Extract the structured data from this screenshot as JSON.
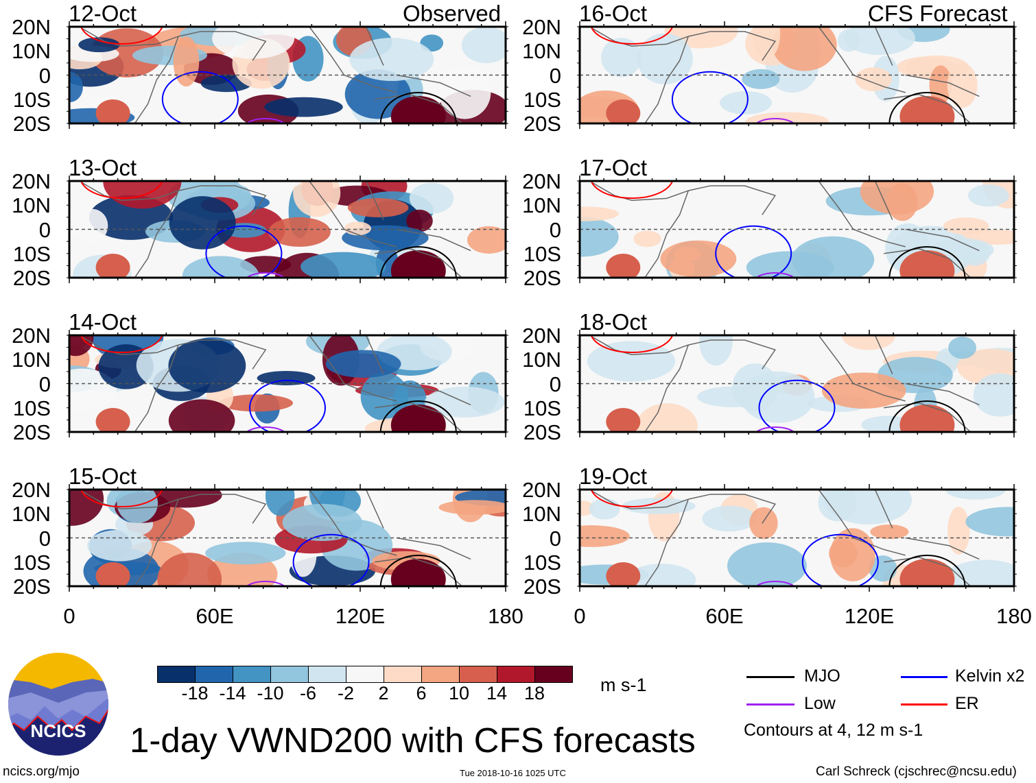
{
  "title": "1-day VWND200 with CFS forecasts",
  "left_header": "Observed",
  "right_header": "CFS Forecast",
  "panels_left": [
    "12-Oct",
    "13-Oct",
    "14-Oct",
    "15-Oct"
  ],
  "panels_right": [
    "16-Oct",
    "17-Oct",
    "18-Oct",
    "19-Oct"
  ],
  "lat_labels": [
    "20N",
    "10N",
    "0",
    "10S",
    "20S"
  ],
  "lon_labels": [
    "0",
    "60E",
    "120E",
    "180"
  ],
  "colorbar": {
    "labels": [
      "-18",
      "-14",
      "-10",
      "-6",
      "-2",
      "2",
      "6",
      "10",
      "14",
      "18"
    ],
    "colors": [
      "#08306b",
      "#2166ac",
      "#4393c3",
      "#92c5de",
      "#d1e5f0",
      "#f7f7f7",
      "#fddbc7",
      "#f4a582",
      "#d6604d",
      "#b2182b",
      "#67001f"
    ],
    "units": "m s-1"
  },
  "legend": {
    "items": [
      {
        "label": "MJO",
        "color": "#000000"
      },
      {
        "label": "Kelvin x2",
        "color": "#0000ff"
      },
      {
        "label": "Low",
        "color": "#a020f0"
      },
      {
        "label": "ER",
        "color": "#ff0000"
      }
    ],
    "note": "Contours at 4, 12 m s-1"
  },
  "logo_text": "NCICS",
  "footer": {
    "url": "ncics.org/mjo",
    "timestamp": "Tue 2018-10-16 1025 UTC",
    "credit": "Carl Schreck (cjschrec@ncsu.edu)"
  }
}
